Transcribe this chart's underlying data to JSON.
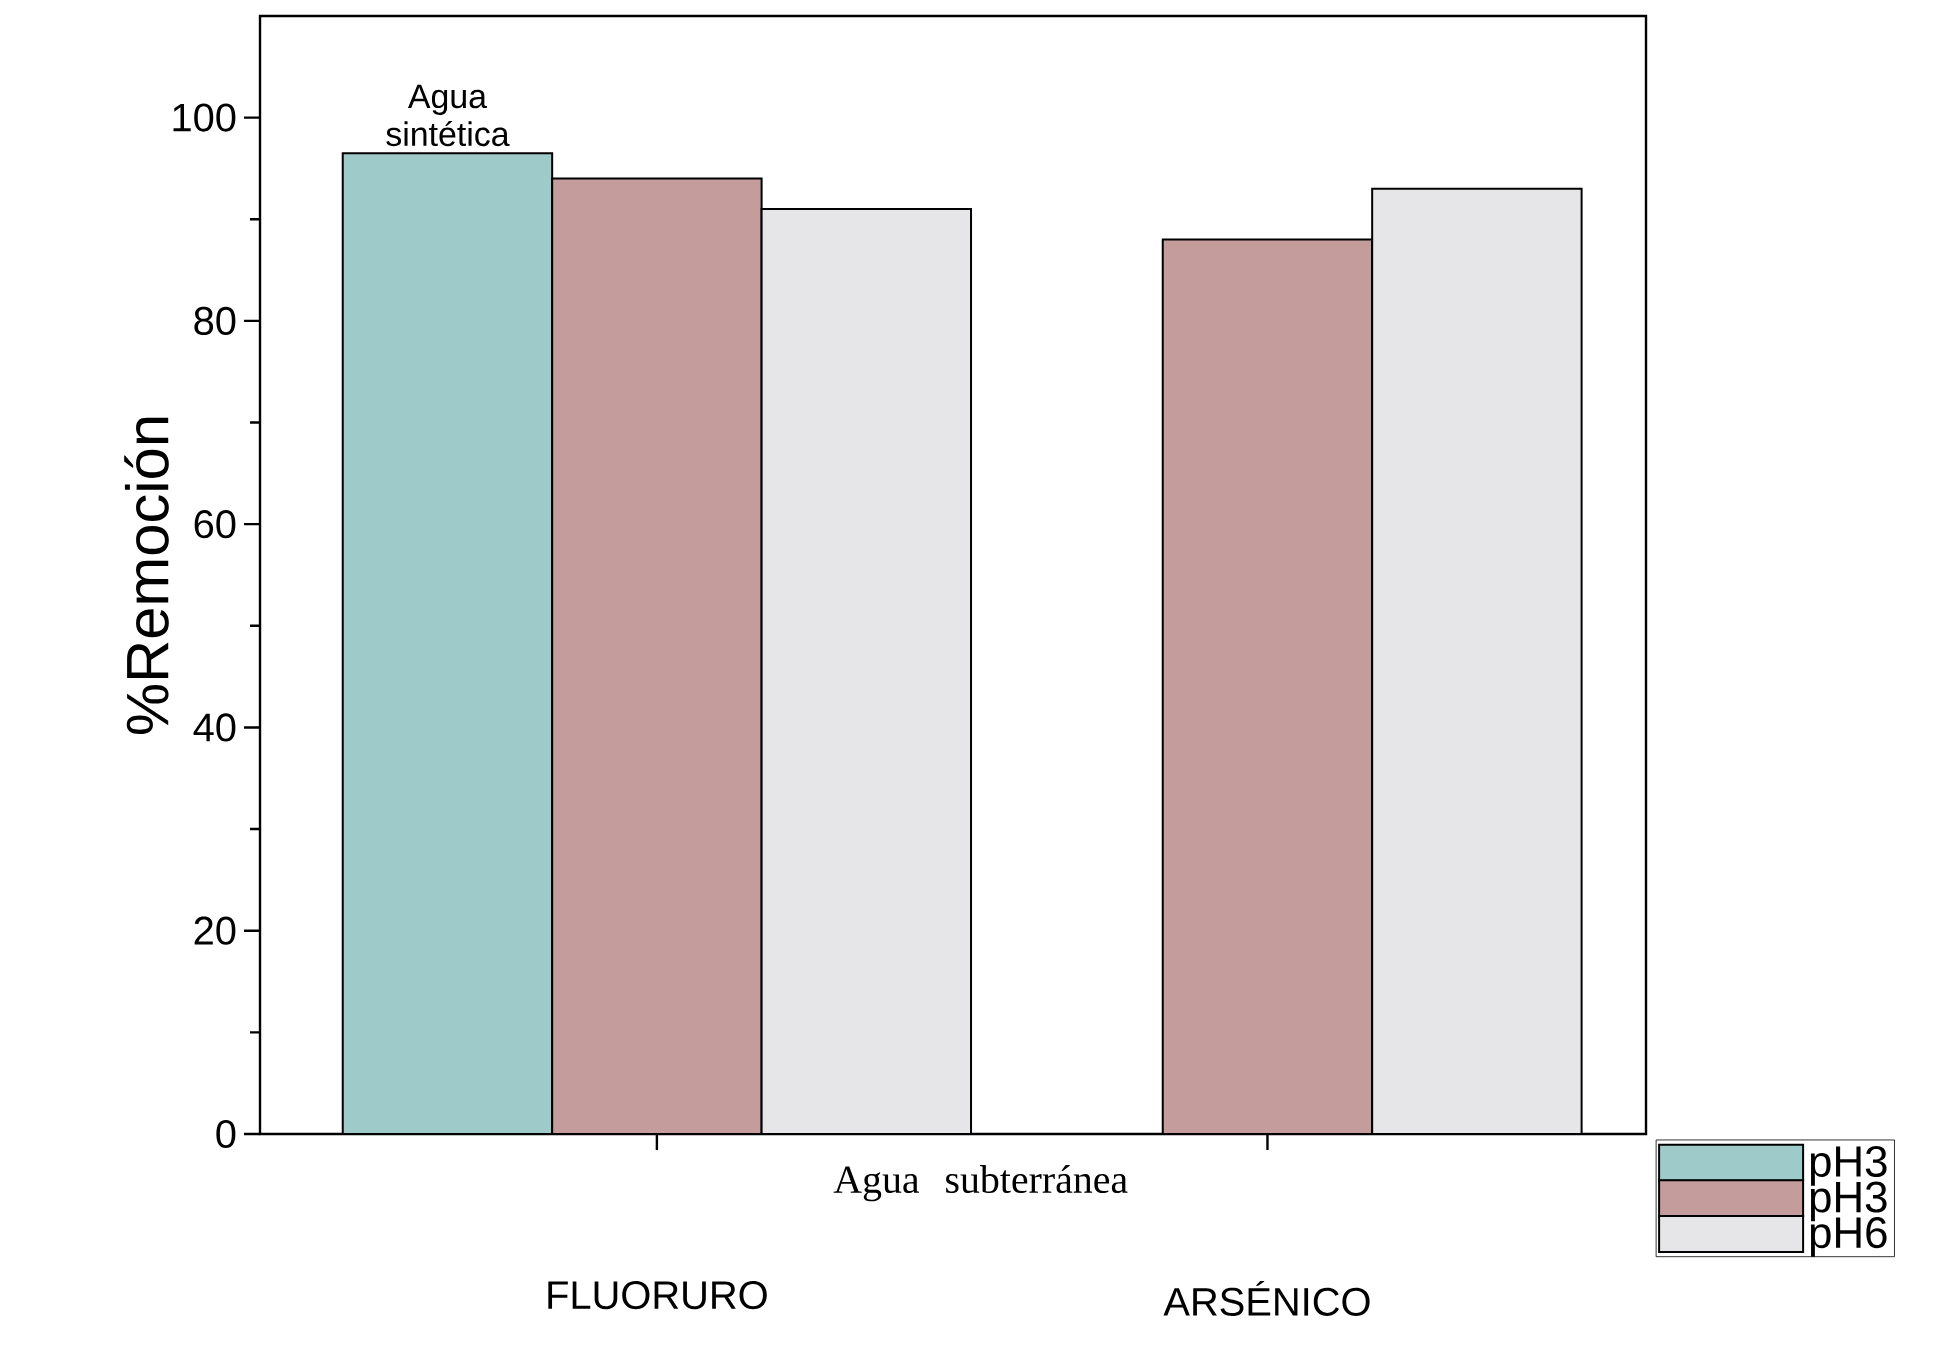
{
  "chart_data": {
    "type": "bar",
    "xlabel": "Agua subterránea",
    "ylabel": "%Remoción",
    "categories": [
      "FLUORURO",
      "ARSÉNICO"
    ],
    "series": [
      {
        "name": "pH3",
        "color": "#9fcaca",
        "values": [
          96.5,
          null
        ]
      },
      {
        "name": "pH3",
        "color": "#c49c9c",
        "values": [
          94,
          88
        ]
      },
      {
        "name": "pH6",
        "color": "#e6e6e8",
        "values": [
          91,
          93
        ]
      }
    ],
    "annotations": [
      "Agua sintética"
    ],
    "ylim": [
      0,
      110
    ],
    "yticks": [
      0,
      20,
      40,
      60,
      80,
      100
    ],
    "grid": false,
    "legend": "bottom right"
  }
}
